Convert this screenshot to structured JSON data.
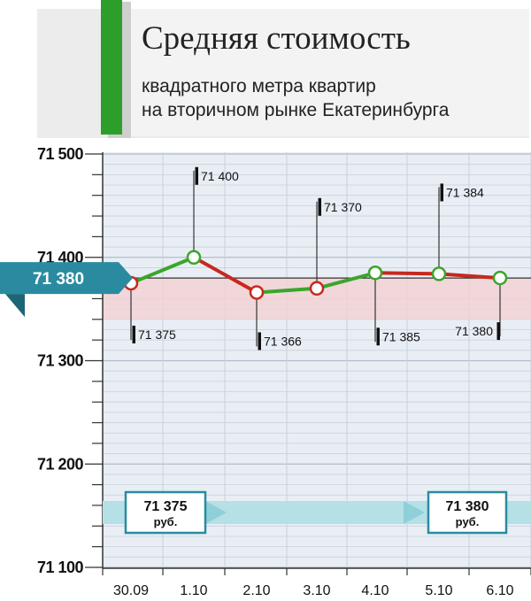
{
  "chart_data": {
    "type": "line",
    "title": "Средняя стоимость",
    "subtitle_lines": [
      "квадратного метра квартир",
      "на вторичном рынке Екатеринбурга"
    ],
    "categories": [
      "30.09",
      "1.10",
      "2.10",
      "3.10",
      "4.10",
      "5.10",
      "6.10"
    ],
    "values": [
      71375,
      71400,
      71366,
      71370,
      71385,
      71384,
      71380
    ],
    "value_labels": [
      "71 375",
      "71 400",
      "71 366",
      "71 370",
      "71 385",
      "71 384",
      "71 380"
    ],
    "y_ticks": [
      {
        "value": 71500,
        "label": "71 500"
      },
      {
        "value": 71400,
        "label": "71 400"
      },
      {
        "value": 71300,
        "label": "71 300"
      },
      {
        "value": 71200,
        "label": "71 200"
      },
      {
        "value": 71100,
        "label": "71 100"
      }
    ],
    "ylim": [
      71100,
      71500
    ],
    "reference_value": 71380,
    "reference_label": "71 380",
    "start": {
      "value": "71 375",
      "unit": "руб."
    },
    "end": {
      "value": "71 380",
      "unit": "руб."
    },
    "grid": true
  },
  "colors": {
    "rise": "#3aa62c",
    "fall": "#c8281e",
    "accent_bar": "#2e9e2a",
    "badge": "#2a8ba0",
    "band": "#f2d2d4",
    "plot_bg": "#e9eef5",
    "grid": "#c7d0dc",
    "track": "#b4e0e6"
  }
}
